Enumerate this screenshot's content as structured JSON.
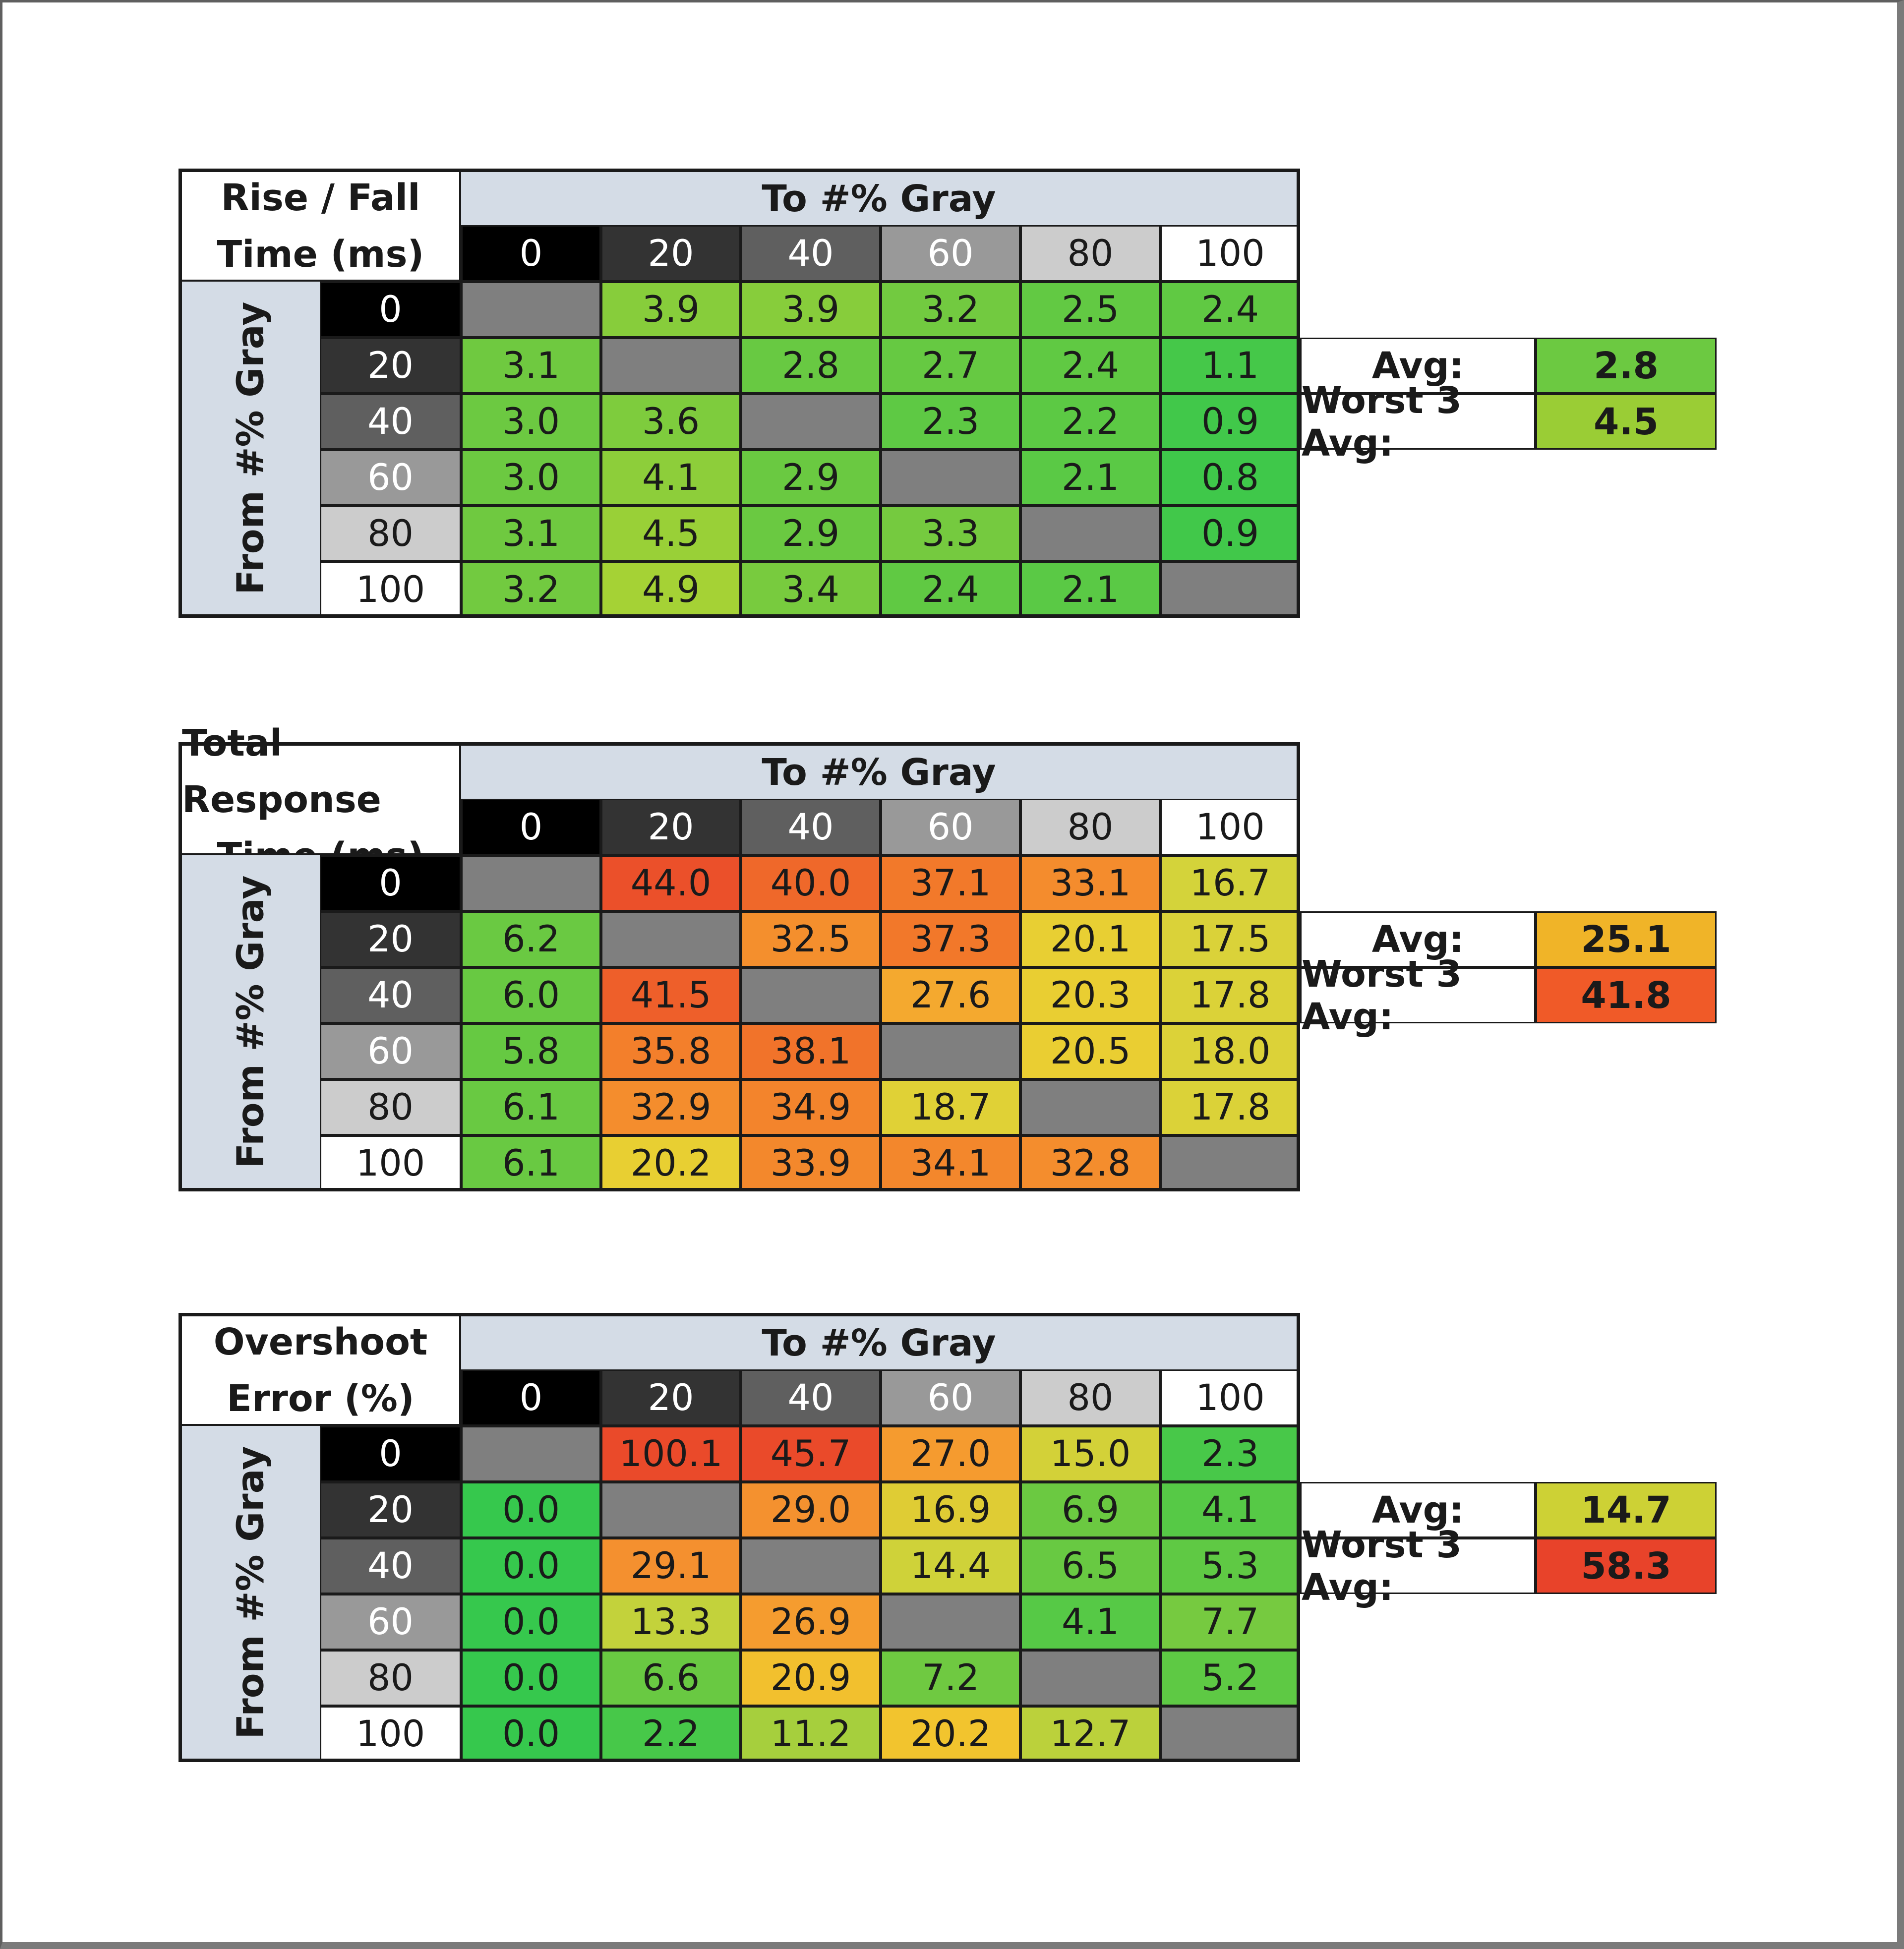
{
  "chart_data": [
    {
      "type": "table",
      "title_lines": [
        "Rise / Fall",
        "Time (ms)"
      ],
      "column_header": "To #% Gray",
      "row_header": "From #% Gray",
      "columns": [
        "0",
        "20",
        "40",
        "60",
        "80",
        "100"
      ],
      "rows": [
        "0",
        "20",
        "40",
        "60",
        "80",
        "100"
      ],
      "values": [
        [
          null,
          3.9,
          3.9,
          3.2,
          2.5,
          2.4
        ],
        [
          3.1,
          null,
          2.8,
          2.7,
          2.4,
          1.1
        ],
        [
          3.0,
          3.6,
          null,
          2.3,
          2.2,
          0.9
        ],
        [
          3.0,
          4.1,
          2.9,
          null,
          2.1,
          0.8
        ],
        [
          3.1,
          4.5,
          2.9,
          3.3,
          null,
          0.9
        ],
        [
          3.2,
          4.9,
          3.4,
          2.4,
          2.1,
          null
        ]
      ],
      "summary": [
        {
          "label": "Avg:",
          "value": "2.8",
          "color": "#6cc941"
        },
        {
          "label": "Worst 3 Avg:",
          "value": "4.5",
          "color": "#9acd35"
        }
      ]
    },
    {
      "type": "table",
      "title_lines": [
        "Total Response",
        "Time (ms)"
      ],
      "column_header": "To #% Gray",
      "row_header": "From #% Gray",
      "columns": [
        "0",
        "20",
        "40",
        "60",
        "80",
        "100"
      ],
      "rows": [
        "0",
        "20",
        "40",
        "60",
        "80",
        "100"
      ],
      "values": [
        [
          null,
          44.0,
          40.0,
          37.1,
          33.1,
          16.7
        ],
        [
          6.2,
          null,
          32.5,
          37.3,
          20.1,
          17.5
        ],
        [
          6.0,
          41.5,
          null,
          27.6,
          20.3,
          17.8
        ],
        [
          5.8,
          35.8,
          38.1,
          null,
          20.5,
          18.0
        ],
        [
          6.1,
          32.9,
          34.9,
          18.7,
          null,
          17.8
        ],
        [
          6.1,
          20.2,
          33.9,
          34.1,
          32.8,
          null
        ]
      ],
      "summary": [
        {
          "label": "Avg:",
          "value": "25.1",
          "color": "#f0b428"
        },
        {
          "label": "Worst 3 Avg:",
          "value": "41.8",
          "color": "#f05a28"
        }
      ]
    },
    {
      "type": "table",
      "title_lines": [
        "Overshoot",
        "Error (%)"
      ],
      "column_header": "To #% Gray",
      "row_header": "From #% Gray",
      "columns": [
        "0",
        "20",
        "40",
        "60",
        "80",
        "100"
      ],
      "rows": [
        "0",
        "20",
        "40",
        "60",
        "80",
        "100"
      ],
      "values": [
        [
          null,
          100.1,
          45.7,
          27.0,
          15.0,
          2.3
        ],
        [
          0.0,
          null,
          29.0,
          16.9,
          6.9,
          4.1
        ],
        [
          0.0,
          29.1,
          null,
          14.4,
          6.5,
          5.3
        ],
        [
          0.0,
          13.3,
          26.9,
          null,
          4.1,
          7.7
        ],
        [
          0.0,
          6.6,
          20.9,
          7.2,
          null,
          5.2
        ],
        [
          0.0,
          2.2,
          11.2,
          20.2,
          12.7,
          null
        ]
      ],
      "summary": [
        {
          "label": "Avg:",
          "value": "14.7",
          "color": "#cdd135"
        },
        {
          "label": "Worst 3 Avg:",
          "value": "58.3",
          "color": "#e8432a"
        }
      ]
    }
  ],
  "colors": {
    "header_blue": "#d4dce6",
    "diagonal_gray": "#7f7f7f",
    "gray_levels": [
      "#000000",
      "#333333",
      "#5f5f5f",
      "#999999",
      "#cccccc",
      "#ffffff"
    ],
    "scale_rise_fall": [
      [
        0.8,
        "#3fc84a"
      ],
      [
        3.0,
        "#6cc941"
      ],
      [
        5.0,
        "#a8d234"
      ]
    ],
    "scale_response": [
      [
        5,
        "#5ec843"
      ],
      [
        17,
        "#d7d33a"
      ],
      [
        22,
        "#f2cc2e"
      ],
      [
        30,
        "#f59a2f"
      ],
      [
        37,
        "#f27a2a"
      ],
      [
        45,
        "#ea4a2a"
      ]
    ],
    "scale_overshoot": [
      [
        0,
        "#36c84d"
      ],
      [
        7,
        "#6cc941"
      ],
      [
        14,
        "#cdd33a"
      ],
      [
        20,
        "#f2c52e"
      ],
      [
        28,
        "#f5952f"
      ],
      [
        45,
        "#ea4a2a"
      ]
    ]
  }
}
